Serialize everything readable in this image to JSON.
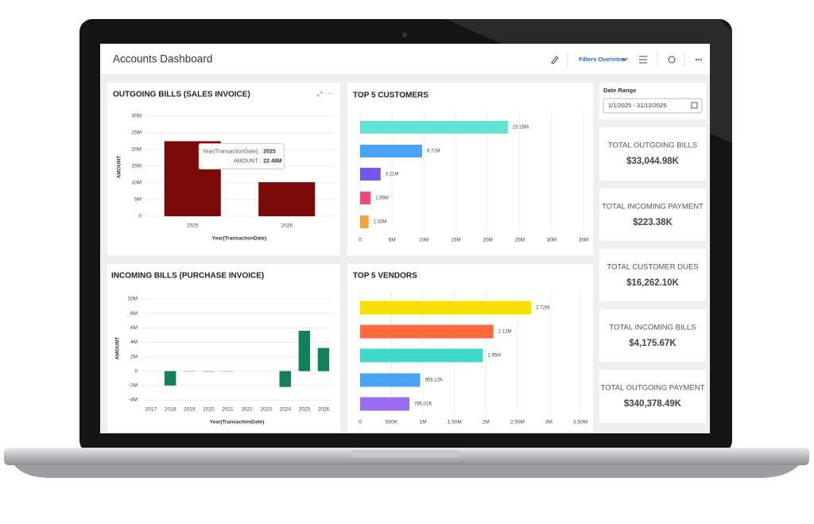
{
  "header": {
    "title": "Accounts Dashboard",
    "filters_label": "Filters Overview"
  },
  "chart_data": [
    {
      "type": "bar",
      "title": "OUTGOING BILLS (SALES INVOICE)",
      "xlabel": "Year(TransactionDate)",
      "ylabel": "AMOUNT",
      "categories": [
        "2025",
        "2026"
      ],
      "values": [
        22480000,
        10200000
      ],
      "value_labels": [
        "22.48M",
        null
      ],
      "colors": [
        "#7a0a0a",
        "#7a0a0a"
      ],
      "ylim": [
        0,
        30000000
      ],
      "yticks": [
        0,
        {
          "value": 5000000,
          "label": "5M"
        },
        {
          "value": 10000000,
          "label": "10M"
        },
        {
          "value": 15000000,
          "label": "15M"
        },
        {
          "value": 20000000,
          "label": "20M"
        },
        {
          "value": 25000000,
          "label": "25M"
        },
        {
          "value": 30000000,
          "label": "30M"
        }
      ],
      "grid": true,
      "tooltip": {
        "x_label": "Year(TransactionDate) :",
        "y_label": "AMOUNT :"
      }
    },
    {
      "type": "barh",
      "title": "TOP 5 CUSTOMERS",
      "categories": [
        null,
        null,
        null,
        null,
        null
      ],
      "values": [
        23150000,
        9710000,
        3210000,
        1650000,
        1330000
      ],
      "value_labels": [
        "23.15M",
        "9.71M",
        "3.21M",
        "1.65M",
        "1.33M"
      ],
      "colors": [
        "#63e3d6",
        "#4ba3f7",
        "#7656ee",
        "#f2467d",
        "#f6a23a"
      ],
      "xlim": [
        0,
        35000000
      ],
      "xticks": [
        0,
        {
          "value": 5000000,
          "label": "5M"
        },
        {
          "value": 10000000,
          "label": "10M"
        },
        {
          "value": 15000000,
          "label": "15M"
        },
        {
          "value": 20000000,
          "label": "20M"
        },
        {
          "value": 25000000,
          "label": "25M"
        },
        {
          "value": 30000000,
          "label": "30M"
        },
        {
          "value": 35000000,
          "label": "35M"
        }
      ],
      "grid": true
    },
    {
      "type": "bar",
      "title": "INCOMING BILLS (PURCHASE INVOICE)",
      "xlabel": "Year(TransactionDate)",
      "ylabel": "AMOUNT",
      "categories": [
        "2017",
        "2018",
        "2019",
        "2020",
        "2021",
        "2022",
        "2023",
        "2024",
        "2025",
        "2026"
      ],
      "values": [
        null,
        -2000000,
        -100000,
        -150000,
        -50000,
        null,
        null,
        -2200000,
        5600000,
        3200000
      ],
      "colors": [
        "#13805c",
        "#13805c",
        "#a9c9ea",
        "#a9c9ea",
        "#a9c9ea",
        "#13805c",
        "#13805c",
        "#13805c",
        "#13805c",
        "#13805c"
      ],
      "ylim": [
        -4000000,
        10000000
      ],
      "yticks": [
        {
          "value": -4000000,
          "label": "-4M"
        },
        {
          "value": -2000000,
          "label": "-2M"
        },
        0,
        {
          "value": 2000000,
          "label": "2M"
        },
        {
          "value": 4000000,
          "label": "4M"
        },
        {
          "value": 6000000,
          "label": "6M"
        },
        {
          "value": 8000000,
          "label": "8M"
        },
        {
          "value": 10000000,
          "label": "10M"
        }
      ],
      "grid": true
    },
    {
      "type": "barh",
      "title": "TOP 5 VENDORS",
      "categories": [
        null,
        null,
        null,
        null,
        null
      ],
      "values": [
        2720000,
        2120000,
        1950000,
        955120,
        785010
      ],
      "value_labels": [
        "2.72M",
        "2.12M",
        "1.95M",
        "955.12K",
        "785.01K"
      ],
      "colors": [
        "#f7e000",
        "#ff6a3d",
        "#3fd8c8",
        "#4ba3f7",
        "#9a6cf0"
      ],
      "xlim": [
        0,
        3500000
      ],
      "xticks": [
        0,
        {
          "value": 500000,
          "label": "500K"
        },
        {
          "value": 1000000,
          "label": "1M"
        },
        {
          "value": 1500000,
          "label": "1.50M"
        },
        {
          "value": 2000000,
          "label": "2M"
        },
        {
          "value": 2500000,
          "label": "2.50M"
        },
        {
          "value": 3000000,
          "label": "3M"
        },
        {
          "value": 3500000,
          "label": "3.50M"
        }
      ],
      "grid": true
    }
  ],
  "date_range": {
    "label": "Date Range",
    "value": "1/1/2025 - 31/12/2025"
  },
  "kpis": [
    {
      "label": "TOTAL OUTGOING BILLS",
      "value": "$33,044.98K"
    },
    {
      "label": "TOTAL INCOMING PAYMENT",
      "value": "$223.38K"
    },
    {
      "label": "TOTAL CUSTOMER DUES",
      "value": "$16,262.10K"
    },
    {
      "label": "TOTAL INCOMING BILLS",
      "value": "$4,175.67K"
    },
    {
      "label": "TOTAL OUTGOING PAYMENT",
      "value": "$340,378.49K"
    }
  ]
}
